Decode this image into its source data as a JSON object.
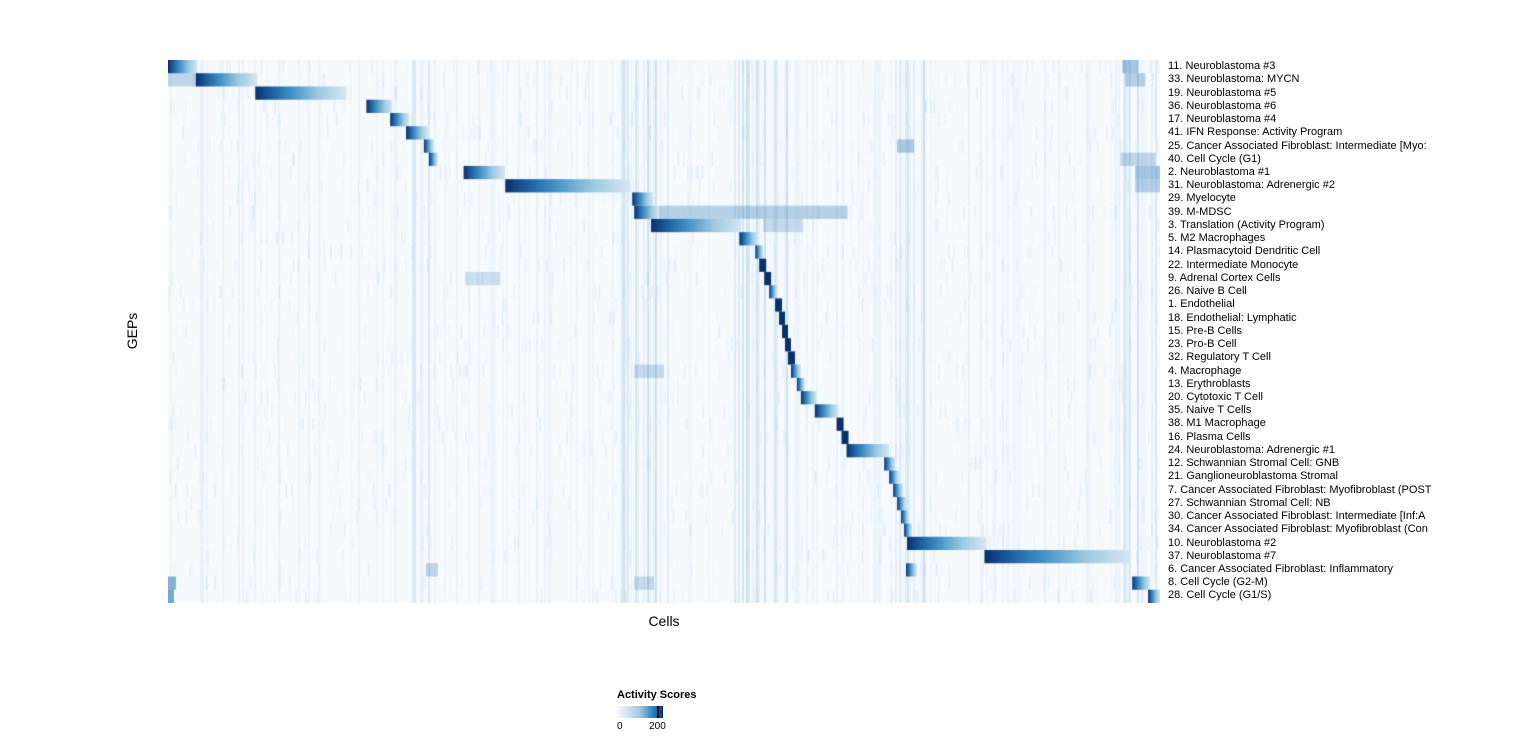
{
  "chart_data": {
    "type": "heatmap",
    "title": "",
    "xlabel": "Cells",
    "ylabel": "GEPs",
    "colormap": "Blues",
    "value_range": [
      0,
      200
    ],
    "legend": {
      "title": "Activity Scores",
      "ticks": [
        "0",
        "200"
      ]
    },
    "layout": {
      "grid": false,
      "legend_position": "bottom-left",
      "row_label_side": "right",
      "description": "GEP activity-score heatmap; each of 41 GEP rows shows a dark-blue block over the subset of cells (columns, sorted) where that program is active, forming a diagonal banded pattern over a near-white background with light blue column noise."
    },
    "column_noise_bands": [
      [
        0.455,
        0.505
      ],
      [
        0.565,
        0.625
      ],
      [
        0.725,
        0.762
      ],
      [
        0.955,
        0.995
      ],
      [
        0.24,
        0.265
      ]
    ],
    "rows": [
      {
        "label": "11. Neuroblastoma #3",
        "block": [
          0.0,
          0.03
        ],
        "secondary": [
          [
            0.962,
            0.978,
            0.5
          ]
        ]
      },
      {
        "label": "33. Neuroblastoma: MYCN",
        "block": [
          0.028,
          0.09
        ],
        "secondary": [
          [
            0.0,
            0.028,
            0.35
          ],
          [
            0.965,
            0.985,
            0.4
          ]
        ]
      },
      {
        "label": "19. Neuroblastoma #5",
        "block": [
          0.088,
          0.18
        ]
      },
      {
        "label": "36. Neuroblastoma #6",
        "block": [
          0.2,
          0.226
        ]
      },
      {
        "label": "17. Neuroblastoma #4",
        "block": [
          0.224,
          0.243
        ]
      },
      {
        "label": "41. IFN Response: Activity Program",
        "block": [
          0.24,
          0.262
        ]
      },
      {
        "label": "25. Cancer Associated Fibroblast: Intermediate [Myo:",
        "block": [
          0.258,
          0.268
        ],
        "secondary": [
          [
            0.735,
            0.752,
            0.45
          ]
        ]
      },
      {
        "label": "40. Cell Cycle (G1)",
        "block": [
          0.263,
          0.272
        ],
        "secondary": [
          [
            0.96,
            0.995,
            0.35
          ]
        ]
      },
      {
        "label": "2. Neuroblastoma #1",
        "block": [
          0.298,
          0.34
        ],
        "secondary": [
          [
            0.975,
            1.0,
            0.5
          ]
        ]
      },
      {
        "label": "31. Neuroblastoma: Adrenergic #2",
        "block": [
          0.34,
          0.466
        ],
        "secondary": [
          [
            0.975,
            1.0,
            0.4
          ]
        ]
      },
      {
        "label": "29. Myelocyte",
        "block": [
          0.468,
          0.489
        ]
      },
      {
        "label": "39. M-MDSC",
        "block": [
          0.47,
          0.495
        ],
        "secondary": [
          [
            0.495,
            0.685,
            0.4
          ]
        ]
      },
      {
        "label": "3. Translation (Activity Program)",
        "block": [
          0.487,
          0.578
        ],
        "secondary": [
          [
            0.6,
            0.64,
            0.3
          ]
        ]
      },
      {
        "label": "5. M2 Macrophages",
        "block": [
          0.576,
          0.595
        ]
      },
      {
        "label": "14. Plasmacytoid Dendritic Cell",
        "block": [
          0.592,
          0.6
        ]
      },
      {
        "label": "22. Intermediate Monocyte",
        "block": [
          0.596,
          0.603
        ]
      },
      {
        "label": "9. Adrenal Cortex Cells",
        "block": [
          0.601,
          0.608
        ],
        "secondary": [
          [
            0.3,
            0.335,
            0.25
          ]
        ]
      },
      {
        "label": "26. Naive B Cell",
        "block": [
          0.606,
          0.614
        ]
      },
      {
        "label": "1. Endothelial",
        "block": [
          0.612,
          0.619
        ]
      },
      {
        "label": "18. Endothelial: Lymphatic",
        "block": [
          0.616,
          0.622
        ]
      },
      {
        "label": "15. Pre-B Cells",
        "block": [
          0.619,
          0.625
        ]
      },
      {
        "label": "23. Pro-B Cell",
        "block": [
          0.622,
          0.628
        ]
      },
      {
        "label": "32. Regulatory T Cell",
        "block": [
          0.625,
          0.632
        ]
      },
      {
        "label": "4. Macrophage",
        "block": [
          0.628,
          0.638
        ],
        "secondary": [
          [
            0.47,
            0.5,
            0.3
          ]
        ]
      },
      {
        "label": "13. Erythroblasts",
        "block": [
          0.634,
          0.642
        ]
      },
      {
        "label": "20. Cytotoxic T Cell",
        "block": [
          0.638,
          0.654
        ]
      },
      {
        "label": "35. Naive T Cells",
        "block": [
          0.652,
          0.676
        ]
      },
      {
        "label": "38. M1 Macrophage",
        "block": [
          0.674,
          0.681
        ]
      },
      {
        "label": "16. Plasma Cells",
        "block": [
          0.679,
          0.686
        ]
      },
      {
        "label": "24. Neuroblastoma: Adrenergic #1",
        "block": [
          0.684,
          0.727
        ]
      },
      {
        "label": "12. Schwannian Stromal Cell: GNB",
        "block": [
          0.722,
          0.733
        ]
      },
      {
        "label": "21. Ganglioneuroblastoma Stromal",
        "block": [
          0.727,
          0.737
        ]
      },
      {
        "label": "7. Cancer Associated Fibroblast: Myofibroblast (POST",
        "block": [
          0.731,
          0.741
        ]
      },
      {
        "label": "27. Schwannian Stromal Cell: NB",
        "block": [
          0.735,
          0.744
        ]
      },
      {
        "label": "30. Cancer Associated Fibroblast: Intermediate [Inf:A",
        "block": [
          0.739,
          0.747
        ]
      },
      {
        "label": "34. Cancer Associated Fibroblast: Myofibroblast (Con",
        "block": [
          0.742,
          0.75
        ]
      },
      {
        "label": "10. Neuroblastoma #2",
        "block": [
          0.745,
          0.825
        ]
      },
      {
        "label": "37. Neuroblastoma #7",
        "block": [
          0.823,
          0.97
        ]
      },
      {
        "label": "6. Cancer Associated Fibroblast: Inflammatory",
        "block": [
          0.744,
          0.755
        ],
        "secondary": [
          [
            0.26,
            0.272,
            0.35
          ]
        ]
      },
      {
        "label": "8. Cell Cycle (G2-M)",
        "block": [
          0.972,
          0.99
        ],
        "secondary": [
          [
            0.0,
            0.008,
            0.7
          ],
          [
            0.47,
            0.49,
            0.3
          ]
        ]
      },
      {
        "label": "28. Cell Cycle (G1/S)",
        "block": [
          0.988,
          1.0
        ],
        "secondary": [
          [
            0.0,
            0.006,
            0.8
          ]
        ]
      }
    ]
  }
}
